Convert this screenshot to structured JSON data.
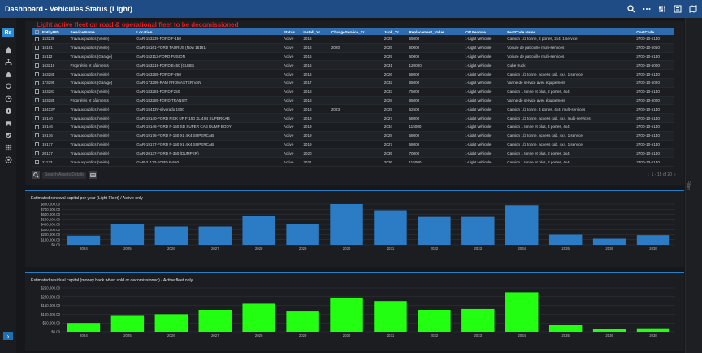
{
  "header": {
    "title": "Dashboard - Vehicules Status (Light)"
  },
  "icons": {
    "top": [
      "search-icon",
      "more-icon",
      "filter-icon",
      "list-icon",
      "map-icon"
    ],
    "rail": [
      "home-icon",
      "hierarchy-icon",
      "alarm-icon",
      "lightbulb-icon",
      "history-icon",
      "add-icon",
      "car-icon",
      "check-icon",
      "apps-icon",
      "settings-icon"
    ]
  },
  "rail": {
    "logo": "Rs",
    "expand": "›"
  },
  "right_panel_label": "Filter",
  "warning": "Light active fleet on road & operational fleet to be decomissioned",
  "table": {
    "columns": [
      "EntityUID",
      "Service Name",
      "Location",
      "Status",
      "Install_Yr",
      "ChangeService_Yr",
      "Junk_Yr",
      "Replacement_Value",
      "CW Feature",
      "FeatCode Name",
      "CostCode"
    ],
    "rows": [
      [
        "153239",
        "Travaux publics (Voirie)",
        "GAR-153239-FORD F-150",
        "Active",
        "2015",
        "",
        "2025",
        "55000",
        "1-Light vehicule",
        "Camion 1/2 tonne, 2 portes, 2x4, 1 service",
        "2700-10-5140"
      ],
      [
        "16161",
        "Travaux publics (Voirie)",
        "GAR-16161-FORD TAURUS (Now 16161)",
        "Active",
        "2016",
        "2020",
        "2025",
        "60000",
        "1-Light vehicule",
        "Voiture de patrouille multi-services",
        "2700-10-5050"
      ],
      [
        "15112",
        "Travaux publics (Garage)",
        "GAR-152112-FORD FUSION",
        "Active",
        "2016",
        "",
        "2029",
        "60000",
        "1-Light vehicule",
        "Voiture de patrouille multi-services",
        "2700-10-5140"
      ],
      [
        "163219",
        "Propriétés et bâtiments",
        "GAR-163219-FORD E450 (CUBE)",
        "Active",
        "2016",
        "",
        "2031",
        "120000",
        "1-Light vehicule",
        "Cube truck",
        "2700-10-6000"
      ],
      [
        "163285",
        "Travaux publics (Voirie)",
        "GAR-163285-FORD F-250",
        "Active",
        "2016",
        "",
        "2026",
        "58000",
        "1-Light vehicule",
        "Camion 1/2 tonne, access cab, 4x4, 1 service",
        "2700-10-5140"
      ],
      [
        "173295",
        "Travaux publics (Garage)",
        "GAR-173295-RAM PROMASTER VAN",
        "Active",
        "2017",
        "",
        "2032",
        "65000",
        "1-Light vehicule",
        "Vanne de service avec équipement",
        "2700-10-5020"
      ],
      [
        "183281",
        "Travaux publics (Voirie)",
        "GAR-183281-FORD F250",
        "Active",
        "2018",
        "",
        "2033",
        "75000",
        "1-Light vehicule",
        "Camion 1 tonne et plus, 2 portes, 4x4",
        "2700-10-5140"
      ],
      [
        "183285",
        "Propriétés et bâtiments",
        "GAR-183285-FORD TRANSIT",
        "Active",
        "2018",
        "",
        "2028",
        "65000",
        "1-Light vehicule",
        "Vanne de service avec équipement",
        "2700-10-6000"
      ],
      [
        "18413V",
        "Travaux publics (Voirie)",
        "GAR-18413V-silverado 1500",
        "Active",
        "2018",
        "2023",
        "2029",
        "62500",
        "1-Light vehicule",
        "Camion 1/2 tonne, 4 portes, 4x4, multi-services",
        "2700-10-5140"
      ],
      [
        "19140",
        "Travaux publics (Voirie)",
        "GAR-19140-FORD PICK UP F-150 XL 4X4 SUPERCAB",
        "Active",
        "2019",
        "",
        "2027",
        "58000",
        "1-Light vehicule",
        "Camion 1/2 tonne, access cab, 4x4, multi-services",
        "2700-10-5140"
      ],
      [
        "19146",
        "Travaux publics (Voirie)",
        "GAR-19146-FORD F-150 SD SUPER CAB DUMP BODY",
        "Active",
        "2019",
        "",
        "2034",
        "115000",
        "1-Light vehicule",
        "Camion 1 tonne et plus, 4 portes, 4x4",
        "2700-10-5140"
      ],
      [
        "19176",
        "Travaux publics (Voirie)",
        "GAR-19176-FORD F-150 XL 4X4 SUPERCAB",
        "Active",
        "2019",
        "",
        "2028",
        "58000",
        "1-Light vehicule",
        "Camion 1/2 tonne, access cab, 4x4, 1 service",
        "2700-10-5140"
      ],
      [
        "19177",
        "Travaux publics (Voirie)",
        "GAR-19177-FORD F-150 XL 4X4 SUPERCAB",
        "Active",
        "2019",
        "",
        "2027",
        "58000",
        "1-Light vehicule",
        "Camion 1/2 tonne, access cab, 4x4, 1 service",
        "2700-10-5140"
      ],
      [
        "20137",
        "Travaux publics (Voirie)",
        "GAR-20137-FORD F-350 (DUMPER)",
        "Active",
        "2020",
        "",
        "2035",
        "70000",
        "1-Light vehicule",
        "Camion 1 tonne et plus, 2 portes, 2x4",
        "2700-10-5140"
      ],
      [
        "21133",
        "Travaux publics (Voirie)",
        "GAR-21133-FORD F-550",
        "Active",
        "2021",
        "",
        "2036",
        "115000",
        "1-Light vehicule",
        "Camion 1 tonne et plus, 2 portes, 4x4",
        "2700-10-5140"
      ]
    ]
  },
  "search": {
    "placeholder": "Search Assets Details"
  },
  "pager": {
    "text": "1 - 15 of 20",
    "prev": "‹",
    "next": "›"
  },
  "charts": {
    "renewal": {
      "title": "Estimated renewal capital per year (Light Fleet) / Active only"
    },
    "residual": {
      "title": "Estimated residual capital (money back when sold or decomissioned) / Active fleet only"
    }
  },
  "chart_data": [
    {
      "type": "bar",
      "title": "Estimated renewal capital per year (Light Fleet) / Active only",
      "categories": [
        "2024",
        "2025",
        "2026",
        "2027",
        "2028",
        "2029",
        "2030",
        "2031",
        "2032",
        "2033",
        "2034",
        "2035",
        "2036",
        "2038"
      ],
      "values": [
        180000,
        410000,
        360000,
        360000,
        560000,
        410000,
        800000,
        680000,
        550000,
        550000,
        780000,
        200000,
        120000,
        190000
      ],
      "ylim": [
        0,
        800000
      ],
      "yticks": [
        "$0.00",
        "$100,000.00",
        "$200,000.00",
        "$300,000.00",
        "$400,000.00",
        "$500,000.00",
        "$600,000.00",
        "$700,000.00",
        "$800,000.00"
      ],
      "color": "#2b7cc4",
      "grid": true
    },
    {
      "type": "bar",
      "title": "Estimated residual capital (money back when sold or decomissioned) / Active fleet only",
      "categories": [
        "2024",
        "2025",
        "2026",
        "2027",
        "2028",
        "2029",
        "2030",
        "2031",
        "2032",
        "2033",
        "2034",
        "2035",
        "2036",
        "2038"
      ],
      "values": [
        50000,
        95000,
        100000,
        125000,
        160000,
        120000,
        195000,
        175000,
        125000,
        130000,
        225000,
        40000,
        15000,
        20000
      ],
      "ylim": [
        0,
        250000
      ],
      "yticks": [
        "$0.00",
        "$50,000.00",
        "$100,000.00",
        "$150,000.00",
        "$200,000.00",
        "$250,000.00"
      ],
      "color": "#22ff11",
      "grid": true
    }
  ]
}
